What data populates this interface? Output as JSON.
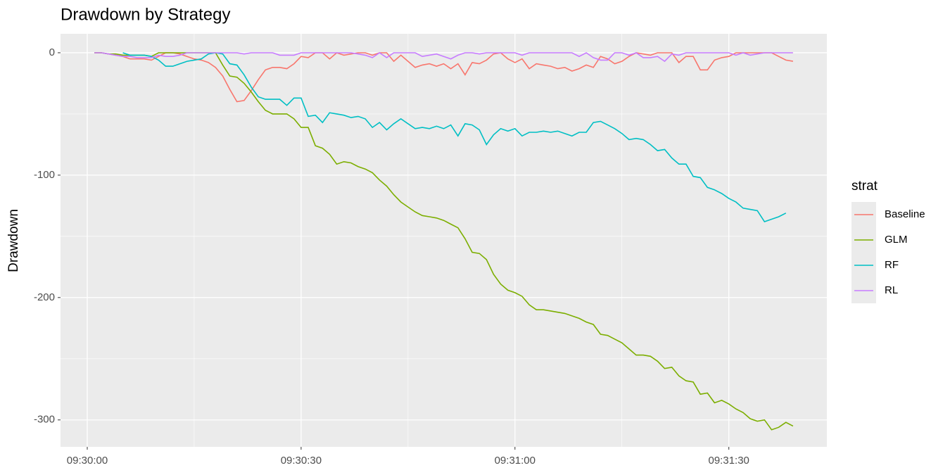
{
  "chart_data": {
    "type": "line",
    "title": "Drawdown by Strategy",
    "y_label": "Drawdown",
    "legend_title": "strat",
    "x": [
      "09:30:01",
      "09:30:02",
      "09:30:03",
      "09:30:04",
      "09:30:05",
      "09:30:06",
      "09:30:07",
      "09:30:08",
      "09:30:09",
      "09:30:10",
      "09:30:11",
      "09:30:12",
      "09:30:13",
      "09:30:14",
      "09:30:15",
      "09:30:16",
      "09:30:17",
      "09:30:18",
      "09:30:19",
      "09:30:20",
      "09:30:21",
      "09:30:22",
      "09:30:23",
      "09:30:24",
      "09:30:25",
      "09:30:26",
      "09:30:27",
      "09:30:28",
      "09:30:29",
      "09:30:30",
      "09:30:31",
      "09:30:32",
      "09:30:33",
      "09:30:34",
      "09:30:35",
      "09:30:36",
      "09:30:37",
      "09:30:38",
      "09:30:39",
      "09:30:40",
      "09:30:41",
      "09:30:42",
      "09:30:43",
      "09:30:44",
      "09:30:45",
      "09:30:46",
      "09:30:47",
      "09:30:48",
      "09:30:49",
      "09:30:50",
      "09:30:51",
      "09:30:52",
      "09:30:53",
      "09:30:54",
      "09:30:55",
      "09:30:56",
      "09:30:57",
      "09:30:58",
      "09:30:59",
      "09:31:00",
      "09:31:01",
      "09:31:02",
      "09:31:03",
      "09:31:04",
      "09:31:05",
      "09:31:06",
      "09:31:07",
      "09:31:08",
      "09:31:09",
      "09:31:10",
      "09:31:11",
      "09:31:12",
      "09:31:13",
      "09:31:14",
      "09:31:15",
      "09:31:16",
      "09:31:17",
      "09:31:18",
      "09:31:19",
      "09:31:20",
      "09:31:21",
      "09:31:22",
      "09:31:23",
      "09:31:24",
      "09:31:25",
      "09:31:26",
      "09:31:27",
      "09:31:28",
      "09:31:29",
      "09:31:30",
      "09:31:31",
      "09:31:32",
      "09:31:33",
      "09:31:34",
      "09:31:35",
      "09:31:36",
      "09:31:37",
      "09:31:38",
      "09:31:39"
    ],
    "series": [
      {
        "name": "Baseline",
        "color": "#F8766D",
        "values": [
          0,
          0,
          -1,
          -2,
          -3,
          -5,
          -5,
          -5,
          -6,
          -3,
          0,
          0,
          -1,
          -3,
          -5,
          -6,
          -8,
          -12,
          -19,
          -30,
          -40,
          -39,
          -31,
          -22,
          -14,
          -12,
          -12,
          -13,
          -9,
          -3,
          -4,
          0,
          0,
          -5,
          0,
          -2,
          -1,
          0,
          0,
          -2,
          0,
          0,
          -7,
          -2,
          -7,
          -12,
          -10,
          -9,
          -11,
          -9,
          -13,
          -9,
          -18,
          -8,
          -9,
          -6,
          -1,
          0,
          -5,
          -8,
          -5,
          -13,
          -9,
          -10,
          -11,
          -13,
          -12,
          -15,
          -13,
          -10,
          -12,
          -3,
          -5,
          -9,
          -7,
          -3,
          0,
          -1,
          -2,
          0,
          0,
          0,
          -8,
          -3,
          -3,
          -14,
          -14,
          -6,
          -4,
          -3,
          0,
          0,
          0,
          0,
          0,
          0,
          -3,
          -6,
          -7
        ]
      },
      {
        "name": "GLM",
        "color": "#7CAE00",
        "values": [
          0,
          0,
          -1,
          -1,
          -2,
          -2,
          -2,
          -2,
          -3,
          0,
          0,
          0,
          0,
          0,
          0,
          0,
          0,
          0,
          -10,
          -19,
          -20,
          -25,
          -32,
          -40,
          -47,
          -50,
          -50,
          -50,
          -54,
          -61,
          -61,
          -76,
          -78,
          -83,
          -91,
          -89,
          -90,
          -93,
          -95,
          -98,
          -104,
          -109,
          -116,
          -122,
          -126,
          -130,
          -133,
          -134,
          -135,
          -137,
          -140,
          -143,
          -152,
          -163,
          -164,
          -169,
          -181,
          -189,
          -194,
          -196,
          -199,
          -206,
          -210,
          -210,
          -211,
          -212,
          -213,
          -215,
          -217,
          -220,
          -222,
          -230,
          -231,
          -234,
          -237,
          -242,
          -247,
          -247,
          -248,
          -252,
          -258,
          -257,
          -264,
          -268,
          -269,
          -279,
          -278,
          -286,
          -284,
          -287,
          -291,
          -294,
          -299,
          -301,
          -300,
          -308,
          -306,
          -302,
          -305
        ]
      },
      {
        "name": "RF",
        "color": "#00BFC4",
        "values": [
          null,
          null,
          null,
          null,
          0,
          -2,
          -2,
          -2,
          -3,
          -6,
          -11,
          -11,
          -9,
          -7,
          -6,
          -5,
          -1,
          0,
          -1,
          -9,
          -10,
          -18,
          -28,
          -36,
          -38,
          -38,
          -38,
          -43,
          -37,
          -37,
          -52,
          -51,
          -57,
          -49,
          -50,
          -51,
          -53,
          -52,
          -54,
          -61,
          -57,
          -63,
          -58,
          -54,
          -58,
          -62,
          -61,
          -62,
          -60,
          -62,
          -59,
          -68,
          -58,
          -59,
          -63,
          -75,
          -67,
          -62,
          -64,
          -62,
          -68,
          -65,
          -65,
          -64,
          -65,
          -64,
          -66,
          -68,
          -65,
          -65,
          -57,
          -56,
          -59,
          -62,
          -66,
          -71,
          -70,
          -71,
          -75,
          -80,
          -79,
          -86,
          -91,
          -91,
          -101,
          -102,
          -110,
          -112,
          -115,
          -119,
          -122,
          -127,
          -128,
          -129,
          -138,
          -136,
          -134,
          -131,
          null
        ]
      },
      {
        "name": "RL",
        "color": "#C77CFF",
        "values": [
          0,
          0,
          -1,
          -2,
          -3,
          -3,
          -4,
          -4,
          -4,
          -2,
          -3,
          -3,
          -2,
          0,
          0,
          0,
          0,
          0,
          0,
          0,
          0,
          -1,
          0,
          0,
          0,
          0,
          -2,
          -2,
          -2,
          0,
          0,
          0,
          0,
          0,
          0,
          0,
          0,
          -1,
          -2,
          -4,
          0,
          -4,
          0,
          0,
          0,
          0,
          -3,
          -2,
          -1,
          -3,
          -5,
          -2,
          0,
          0,
          -1,
          0,
          0,
          0,
          0,
          0,
          -2,
          0,
          0,
          0,
          0,
          0,
          0,
          0,
          -3,
          0,
          -4,
          -6,
          -6,
          0,
          0,
          -2,
          0,
          -4,
          -4,
          -3,
          -7,
          -1,
          -2,
          0,
          0,
          0,
          0,
          0,
          0,
          0,
          -2,
          0,
          -2,
          -1,
          0,
          0,
          0,
          0,
          0
        ]
      }
    ],
    "xlim": [
      "09:29:56.25",
      "09:31:43.75"
    ],
    "xticks": [
      "09:30:00",
      "09:30:30",
      "09:31:00",
      "09:31:30"
    ],
    "ylim": [
      -322,
      15.5
    ],
    "yticks": [
      -300,
      -200,
      -100,
      0
    ],
    "grid": true
  }
}
